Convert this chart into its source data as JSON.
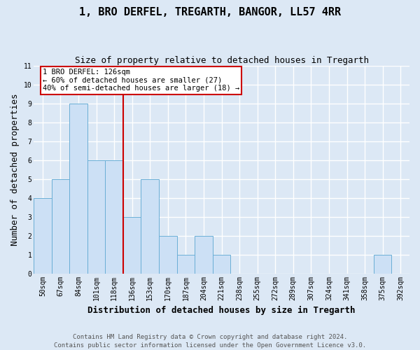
{
  "title": "1, BRO DERFEL, TREGARTH, BANGOR, LL57 4RR",
  "subtitle": "Size of property relative to detached houses in Tregarth",
  "xlabel": "Distribution of detached houses by size in Tregarth",
  "ylabel": "Number of detached properties",
  "footnote1": "Contains HM Land Registry data © Crown copyright and database right 2024.",
  "footnote2": "Contains public sector information licensed under the Open Government Licence v3.0.",
  "categories": [
    "50sqm",
    "67sqm",
    "84sqm",
    "101sqm",
    "118sqm",
    "136sqm",
    "153sqm",
    "170sqm",
    "187sqm",
    "204sqm",
    "221sqm",
    "238sqm",
    "255sqm",
    "272sqm",
    "289sqm",
    "307sqm",
    "324sqm",
    "341sqm",
    "358sqm",
    "375sqm",
    "392sqm"
  ],
  "values": [
    4,
    5,
    9,
    6,
    6,
    3,
    5,
    2,
    1,
    2,
    1,
    0,
    0,
    0,
    0,
    0,
    0,
    0,
    0,
    1,
    0
  ],
  "bar_color": "#cce0f5",
  "bar_edge_color": "#6aaed6",
  "vline_x": 4.5,
  "vline_color": "#cc0000",
  "annotation_text": "1 BRO DERFEL: 126sqm\n← 60% of detached houses are smaller (27)\n40% of semi-detached houses are larger (18) →",
  "annotation_box_color": "#ffffff",
  "annotation_box_edge": "#cc0000",
  "ylim": [
    0,
    11
  ],
  "yticks": [
    0,
    1,
    2,
    3,
    4,
    5,
    6,
    7,
    8,
    9,
    10,
    11
  ],
  "background_color": "#dce8f5",
  "plot_bg_color": "#dce8f5",
  "grid_color": "#ffffff",
  "title_fontsize": 11,
  "subtitle_fontsize": 9,
  "axis_label_fontsize": 9,
  "tick_fontsize": 7,
  "footnote_fontsize": 6.5,
  "annotation_fontsize": 7.5
}
